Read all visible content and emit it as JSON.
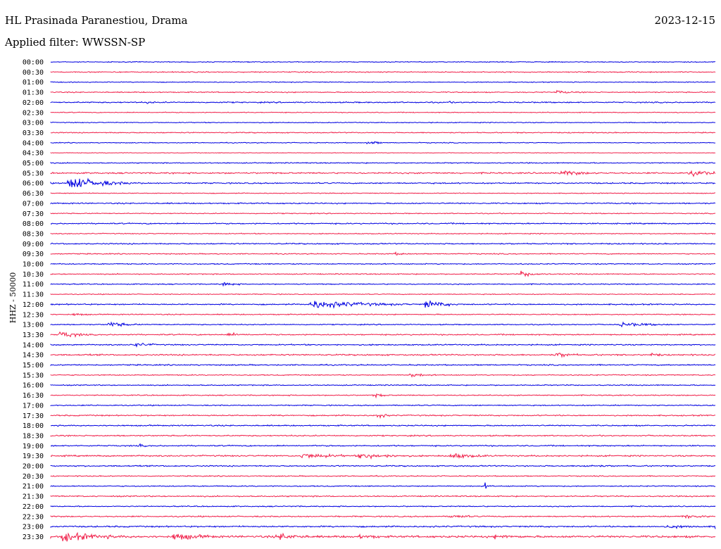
{
  "header": {
    "station": "HL Prasinada Paranestiou, Drama",
    "date": "2023-12-15",
    "filter": "Applied filter: WWSSN-SP"
  },
  "channel_label": "HHZ - 50000",
  "colors": {
    "trace_a": "#0000e0",
    "trace_b": "#f0204a",
    "text": "#000000"
  },
  "chart_data": {
    "type": "line",
    "rows": [
      "00:00",
      "00:30",
      "01:00",
      "01:30",
      "02:00",
      "02:30",
      "03:00",
      "03:30",
      "04:00",
      "04:30",
      "05:00",
      "05:30",
      "06:00",
      "06:30",
      "07:00",
      "07:30",
      "08:00",
      "08:30",
      "09:00",
      "09:30",
      "10:00",
      "10:30",
      "11:00",
      "11:30",
      "12:00",
      "12:30",
      "13:00",
      "13:30",
      "14:00",
      "14:30",
      "15:00",
      "15:30",
      "16:00",
      "16:30",
      "17:00",
      "17:30",
      "18:00",
      "18:30",
      "19:00",
      "19:30",
      "20:00",
      "20:30",
      "21:00",
      "21:30",
      "22:00",
      "22:30",
      "23:00",
      "23:30"
    ],
    "xlim": [
      0,
      30
    ],
    "noise": [
      0.8,
      1.0,
      0.8,
      1.0,
      1.2,
      0.8,
      0.8,
      1.0,
      0.8,
      0.6,
      1.0,
      1.4,
      1.2,
      0.8,
      1.2,
      0.9,
      1.2,
      0.9,
      1.2,
      1.0,
      1.0,
      1.0,
      1.0,
      0.8,
      1.2,
      1.0,
      1.0,
      1.2,
      1.2,
      1.4,
      1.2,
      1.0,
      1.0,
      1.0,
      1.0,
      1.2,
      1.2,
      1.2,
      1.2,
      1.4,
      1.2,
      1.0,
      1.0,
      1.2,
      1.0,
      1.2,
      1.4,
      2.0
    ],
    "events": [
      {
        "row": "01:30",
        "t": 22.8,
        "amp": 4,
        "dur": 0.8
      },
      {
        "row": "02:00",
        "t": 4.3,
        "amp": 3,
        "dur": 0.6
      },
      {
        "row": "02:00",
        "t": 17.8,
        "amp": 2,
        "dur": 1.5
      },
      {
        "row": "04:00",
        "t": 14.3,
        "amp": 5,
        "dur": 0.5
      },
      {
        "row": "05:30",
        "t": 8.0,
        "amp": 3,
        "dur": 0.3
      },
      {
        "row": "05:30",
        "t": 23.0,
        "amp": 6,
        "dur": 1.2
      },
      {
        "row": "05:30",
        "t": 28.8,
        "amp": 6,
        "dur": 1.5
      },
      {
        "row": "06:00",
        "t": 0.8,
        "amp": 14,
        "dur": 1.5
      },
      {
        "row": "06:00",
        "t": 2.5,
        "amp": 4,
        "dur": 1.5
      },
      {
        "row": "09:30",
        "t": 15.5,
        "amp": 3,
        "dur": 0.8
      },
      {
        "row": "10:30",
        "t": 21.2,
        "amp": 6,
        "dur": 0.8
      },
      {
        "row": "11:00",
        "t": 7.8,
        "amp": 6,
        "dur": 0.5
      },
      {
        "row": "12:00",
        "t": 11.7,
        "amp": 9,
        "dur": 2.5
      },
      {
        "row": "12:00",
        "t": 16.9,
        "amp": 9,
        "dur": 0.9
      },
      {
        "row": "12:30",
        "t": 1.0,
        "amp": 3,
        "dur": 0.8
      },
      {
        "row": "13:00",
        "t": 2.6,
        "amp": 6,
        "dur": 0.9
      },
      {
        "row": "13:00",
        "t": 25.7,
        "amp": 5,
        "dur": 1.5
      },
      {
        "row": "13:30",
        "t": 0.4,
        "amp": 8,
        "dur": 0.8
      },
      {
        "row": "13:30",
        "t": 8.0,
        "amp": 4,
        "dur": 1.0
      },
      {
        "row": "14:00",
        "t": 3.8,
        "amp": 5,
        "dur": 0.8
      },
      {
        "row": "14:30",
        "t": 22.8,
        "amp": 6,
        "dur": 0.8
      },
      {
        "row": "14:30",
        "t": 27.0,
        "amp": 4,
        "dur": 0.8
      },
      {
        "row": "15:30",
        "t": 16.2,
        "amp": 5,
        "dur": 0.8
      },
      {
        "row": "16:30",
        "t": 14.6,
        "amp": 5,
        "dur": 0.5
      },
      {
        "row": "17:30",
        "t": 14.7,
        "amp": 6,
        "dur": 0.5
      },
      {
        "row": "19:00",
        "t": 4.0,
        "amp": 4,
        "dur": 0.3
      },
      {
        "row": "19:30",
        "t": 11.3,
        "amp": 6,
        "dur": 1.8
      },
      {
        "row": "19:30",
        "t": 13.9,
        "amp": 6,
        "dur": 1.8
      },
      {
        "row": "19:30",
        "t": 18.0,
        "amp": 6,
        "dur": 1.5
      },
      {
        "row": "20:00",
        "t": 24.0,
        "amp": 3,
        "dur": 1.8
      },
      {
        "row": "21:00",
        "t": 19.6,
        "amp": 7,
        "dur": 0.2
      },
      {
        "row": "22:30",
        "t": 18.0,
        "amp": 4,
        "dur": 1.2
      },
      {
        "row": "22:30",
        "t": 28.5,
        "amp": 5,
        "dur": 1.0
      },
      {
        "row": "23:00",
        "t": 27.8,
        "amp": 4,
        "dur": 1.6
      },
      {
        "row": "23:00",
        "t": 30.0,
        "amp": 9,
        "dur": 0.8
      },
      {
        "row": "23:30",
        "t": 0.5,
        "amp": 10,
        "dur": 2.0
      },
      {
        "row": "23:30",
        "t": 5.5,
        "amp": 8,
        "dur": 1.6
      },
      {
        "row": "23:30",
        "t": 10.2,
        "amp": 8,
        "dur": 1.2
      },
      {
        "row": "23:30",
        "t": 13.8,
        "amp": 5,
        "dur": 1.5
      },
      {
        "row": "23:30",
        "t": 20.0,
        "amp": 5,
        "dur": 1.5
      }
    ]
  }
}
